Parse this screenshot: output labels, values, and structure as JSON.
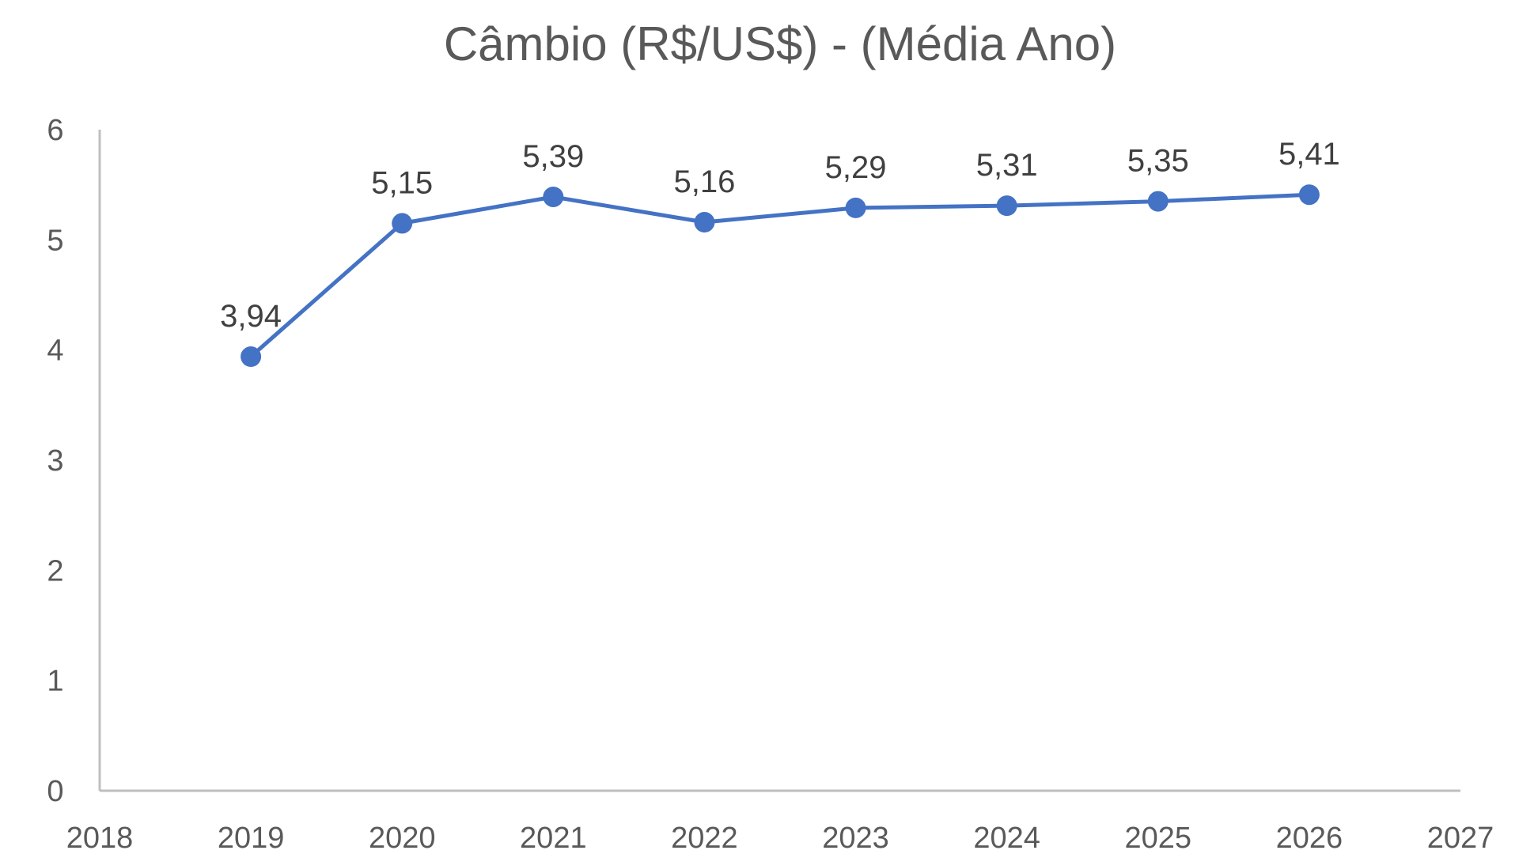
{
  "chart_data": {
    "type": "line",
    "title": "Câmbio (R$/US$) - (Média Ano)",
    "xlabel": "",
    "ylabel": "",
    "xlim": [
      2018,
      2027
    ],
    "ylim": [
      0,
      6
    ],
    "x_ticks": [
      2018,
      2019,
      2020,
      2021,
      2022,
      2023,
      2024,
      2025,
      2026,
      2027
    ],
    "y_ticks": [
      0,
      1,
      2,
      3,
      4,
      5,
      6
    ],
    "grid": false,
    "legend": "none",
    "series": [
      {
        "color": "#4472c4",
        "x": [
          2019,
          2020,
          2021,
          2022,
          2023,
          2024,
          2025,
          2026
        ],
        "y": [
          3.94,
          5.15,
          5.39,
          5.16,
          5.29,
          5.31,
          5.35,
          5.41
        ],
        "labels": [
          "3,94",
          "5,15",
          "5,39",
          "5,16",
          "5,29",
          "5,31",
          "5,35",
          "5,41"
        ]
      }
    ]
  }
}
